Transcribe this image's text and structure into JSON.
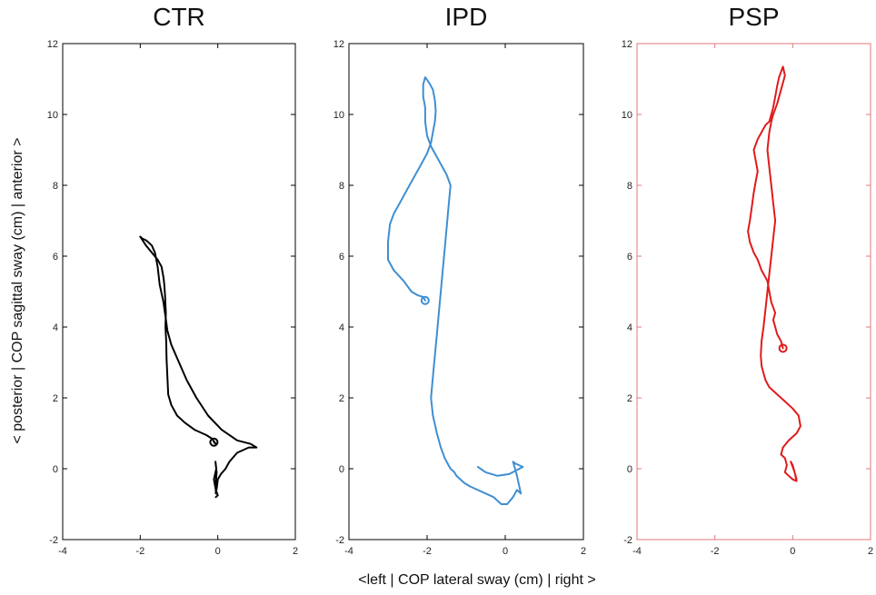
{
  "chart_data": [
    {
      "type": "line",
      "title": "CTR",
      "xlim": [
        -4,
        2
      ],
      "ylim": [
        -2,
        12
      ],
      "xticks": [
        -4,
        -2,
        0,
        2
      ],
      "yticks": [
        -2,
        0,
        2,
        4,
        6,
        8,
        10,
        12
      ],
      "grid": false,
      "frame_color": "#000000",
      "series": [
        {
          "color": "#000000",
          "x": [
            -0.1,
            -0.05,
            -0.15,
            -0.3,
            -0.6,
            -0.85,
            -1.05,
            -1.2,
            -1.28,
            -1.3,
            -1.32,
            -1.33,
            -1.35,
            -1.34,
            -1.36,
            -1.38,
            -1.4,
            -1.45,
            -1.55,
            -1.7,
            -1.85,
            -2.0,
            -1.95,
            -1.85,
            -1.8,
            -1.7,
            -1.62,
            -1.55,
            -1.5,
            -1.4,
            -1.35,
            -1.3,
            -1.2,
            -1.0,
            -0.8,
            -0.55,
            -0.25,
            0.1,
            0.5,
            0.85,
            1.0,
            0.8,
            0.5,
            0.3,
            0.2,
            0.08,
            0.0,
            -0.02,
            -0.05,
            -0.05,
            -0.03,
            -0.05,
            -0.06,
            -0.04,
            -0.1,
            -0.05,
            0.0,
            -0.05
          ],
          "y": [
            0.75,
            0.7,
            0.85,
            0.95,
            1.1,
            1.3,
            1.5,
            1.8,
            2.1,
            2.6,
            3.1,
            3.6,
            4.0,
            4.4,
            4.9,
            5.2,
            5.4,
            5.7,
            5.9,
            6.1,
            6.3,
            6.55,
            6.5,
            6.45,
            6.4,
            6.3,
            6.1,
            5.7,
            5.2,
            4.7,
            4.3,
            3.9,
            3.5,
            3.0,
            2.5,
            2.0,
            1.5,
            1.1,
            0.8,
            0.7,
            0.6,
            0.6,
            0.45,
            0.2,
            0.0,
            -0.15,
            -0.3,
            -0.5,
            -0.7,
            -0.4,
            -0.1,
            0.1,
            0.2,
            0.0,
            -0.3,
            -0.6,
            -0.75,
            -0.8
          ]
        }
      ]
    },
    {
      "type": "line",
      "title": "IPD",
      "xlim": [
        -4,
        2
      ],
      "ylim": [
        -2,
        12
      ],
      "xticks": [
        -4,
        -2,
        0,
        2
      ],
      "yticks": [
        -2,
        0,
        2,
        4,
        6,
        8,
        10,
        12
      ],
      "grid": false,
      "frame_color": "#000000",
      "series": [
        {
          "color": "#3f8fd2",
          "x": [
            -2.05,
            -2.1,
            -2.25,
            -2.4,
            -2.6,
            -2.85,
            -3.0,
            -3.0,
            -2.95,
            -2.85,
            -2.75,
            -2.6,
            -2.45,
            -2.3,
            -2.15,
            -2.0,
            -1.9,
            -1.85,
            -1.8,
            -1.78,
            -1.8,
            -1.85,
            -1.95,
            -2.05,
            -2.1,
            -2.1,
            -2.05,
            -2.05,
            -2.0,
            -1.9,
            -1.8,
            -1.7,
            -1.6,
            -1.5,
            -1.4,
            -1.45,
            -1.5,
            -1.55,
            -1.6,
            -1.65,
            -1.7,
            -1.75,
            -1.8,
            -1.85,
            -1.9,
            -1.85,
            -1.75,
            -1.65,
            -1.55,
            -1.45,
            -1.4,
            -1.3,
            -1.25,
            -1.15,
            -1.05,
            -0.9,
            -0.7,
            -0.5,
            -0.3,
            -0.2,
            -0.1,
            0.05,
            0.2,
            0.3,
            0.4,
            0.3,
            0.2,
            0.25,
            0.45,
            0.1,
            -0.2,
            -0.5,
            -0.7
          ],
          "y": [
            4.75,
            4.85,
            4.9,
            5.0,
            5.3,
            5.6,
            5.9,
            6.4,
            6.9,
            7.2,
            7.4,
            7.7,
            8.0,
            8.3,
            8.6,
            8.9,
            9.2,
            9.5,
            9.8,
            10.1,
            10.4,
            10.7,
            10.9,
            11.05,
            10.85,
            10.5,
            10.2,
            9.8,
            9.4,
            9.1,
            8.9,
            8.7,
            8.5,
            8.3,
            8.0,
            7.4,
            6.8,
            6.2,
            5.6,
            5.0,
            4.4,
            3.8,
            3.2,
            2.6,
            2.0,
            1.5,
            1.0,
            0.6,
            0.3,
            0.1,
            0.0,
            -0.1,
            -0.2,
            -0.3,
            -0.4,
            -0.5,
            -0.6,
            -0.7,
            -0.8,
            -0.9,
            -1.0,
            -1.0,
            -0.8,
            -0.6,
            -0.7,
            -0.2,
            0.2,
            0.15,
            0.05,
            -0.15,
            -0.2,
            -0.1,
            0.05
          ]
        }
      ]
    },
    {
      "type": "line",
      "title": "PSP",
      "xlim": [
        -4,
        2
      ],
      "ylim": [
        -2,
        12
      ],
      "xticks": [
        -4,
        -2,
        0,
        2
      ],
      "yticks": [
        -2,
        0,
        2,
        4,
        6,
        8,
        10,
        12
      ],
      "grid": false,
      "frame_color": "#e07a7a",
      "series": [
        {
          "color": "#e01b1b",
          "x": [
            -0.25,
            -0.3,
            -0.4,
            -0.45,
            -0.5,
            -0.45,
            -0.55,
            -0.6,
            -0.65,
            -0.8,
            -0.9,
            -1.0,
            -1.1,
            -1.15,
            -1.1,
            -1.05,
            -1.0,
            -0.95,
            -0.9,
            -0.95,
            -1.0,
            -0.9,
            -0.8,
            -0.7,
            -0.6,
            -0.55,
            -0.5,
            -0.45,
            -0.4,
            -0.35,
            -0.3,
            -0.25,
            -0.2,
            -0.3,
            -0.4,
            -0.5,
            -0.55,
            -0.6,
            -0.65,
            -0.6,
            -0.55,
            -0.5,
            -0.45,
            -0.5,
            -0.55,
            -0.6,
            -0.65,
            -0.7,
            -0.75,
            -0.8,
            -0.82,
            -0.8,
            -0.75,
            -0.7,
            -0.6,
            -0.4,
            -0.2,
            0.0,
            0.15,
            0.2,
            0.1,
            -0.1,
            -0.25,
            -0.3,
            -0.2,
            -0.15,
            -0.2,
            -0.1,
            -0.05,
            0.0,
            0.1,
            0.05,
            -0.05,
            0.0,
            0.1
          ],
          "y": [
            3.4,
            3.6,
            3.8,
            4.0,
            4.2,
            4.4,
            4.7,
            5.0,
            5.3,
            5.6,
            5.9,
            6.1,
            6.4,
            6.7,
            7.0,
            7.4,
            7.8,
            8.1,
            8.4,
            8.7,
            9.0,
            9.3,
            9.5,
            9.7,
            9.8,
            10.0,
            10.2,
            10.5,
            10.8,
            11.05,
            11.2,
            11.35,
            11.1,
            10.7,
            10.3,
            10.0,
            9.8,
            9.5,
            9.0,
            8.5,
            8.0,
            7.5,
            7.0,
            6.5,
            6.0,
            5.5,
            5.0,
            4.5,
            4.0,
            3.6,
            3.2,
            2.9,
            2.7,
            2.5,
            2.3,
            2.1,
            1.9,
            1.7,
            1.5,
            1.2,
            1.0,
            0.8,
            0.6,
            0.4,
            0.3,
            0.1,
            -0.1,
            -0.2,
            -0.25,
            -0.3,
            -0.35,
            -0.1,
            0.2,
            0.1,
            -0.3
          ]
        }
      ]
    }
  ],
  "labels": {
    "ylabel": "< posterior | COP sagittal sway (cm) | anterior >",
    "xlabel": "<left | COP lateral sway (cm) | right >"
  }
}
